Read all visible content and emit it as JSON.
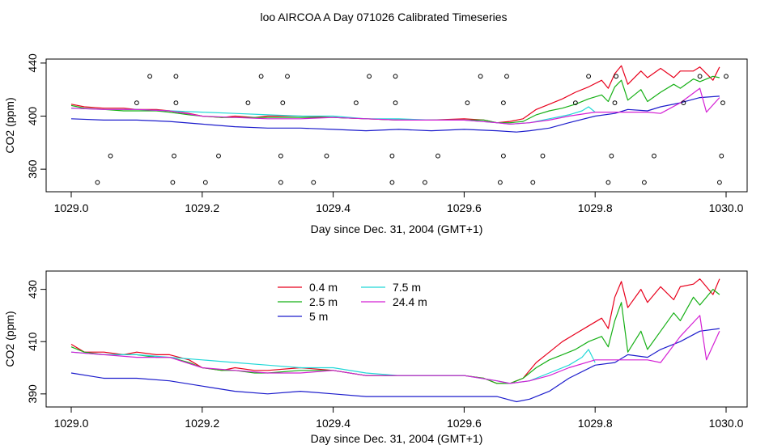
{
  "title": "loo AIRCOA A  Day 071026  Calibrated Timeseries",
  "colors": {
    "frame": "#000000"
  },
  "chart_data": [
    {
      "type": "line",
      "panel": "top",
      "xlabel": "Day since Dec. 31, 2004 (GMT+1)",
      "ylabel": "CO2 (ppm)",
      "xlim": [
        1029.0,
        1030.0
      ],
      "ylim": [
        343,
        443
      ],
      "xticks": [
        1029.0,
        1029.2,
        1029.4,
        1029.6,
        1029.8,
        1030.0
      ],
      "xtick_labels": [
        "1029.0",
        "1029.2",
        "1029.4",
        "1029.6",
        "1029.8",
        "1030.0"
      ],
      "yticks": [
        360,
        400,
        440
      ],
      "ytick_labels": [
        "360",
        "400",
        "440"
      ],
      "grid": false,
      "series": [
        {
          "name": "0.4 m",
          "color": "#e8001c",
          "x": [
            1029.0,
            1029.02,
            1029.05,
            1029.08,
            1029.1,
            1029.13,
            1029.15,
            1029.18,
            1029.2,
            1029.23,
            1029.25,
            1029.28,
            1029.3,
            1029.35,
            1029.4,
            1029.45,
            1029.5,
            1029.55,
            1029.6,
            1029.63,
            1029.65,
            1029.67,
            1029.69,
            1029.71,
            1029.73,
            1029.75,
            1029.77,
            1029.79,
            1029.81,
            1029.82,
            1029.83,
            1029.84,
            1029.85,
            1029.87,
            1029.88,
            1029.9,
            1029.92,
            1029.93,
            1029.95,
            1029.96,
            1029.98,
            1029.99
          ],
          "y": [
            409,
            407,
            406,
            406,
            405,
            405,
            404,
            402,
            400,
            399,
            400,
            399,
            400,
            400,
            399,
            398,
            397,
            397,
            398,
            397,
            395,
            396,
            398,
            405,
            409,
            413,
            418,
            422,
            427,
            421,
            432,
            438,
            424,
            434,
            429,
            436,
            429,
            434,
            434,
            437,
            427,
            437
          ]
        },
        {
          "name": "2.5 m",
          "color": "#16b016",
          "x": [
            1029.0,
            1029.02,
            1029.05,
            1029.08,
            1029.1,
            1029.13,
            1029.15,
            1029.18,
            1029.2,
            1029.23,
            1029.25,
            1029.28,
            1029.3,
            1029.35,
            1029.4,
            1029.45,
            1029.5,
            1029.55,
            1029.6,
            1029.63,
            1029.65,
            1029.67,
            1029.69,
            1029.71,
            1029.73,
            1029.75,
            1029.77,
            1029.79,
            1029.81,
            1029.82,
            1029.83,
            1029.84,
            1029.85,
            1029.87,
            1029.88,
            1029.9,
            1029.92,
            1029.93,
            1029.95,
            1029.96,
            1029.98,
            1029.99
          ],
          "y": [
            408,
            406,
            405,
            404,
            404,
            404,
            403,
            401,
            400,
            399,
            399,
            399,
            399,
            399,
            399,
            398,
            397,
            397,
            397,
            397,
            395,
            395,
            396,
            401,
            404,
            406,
            409,
            413,
            416,
            411,
            422,
            427,
            412,
            420,
            411,
            418,
            424,
            421,
            428,
            426,
            430,
            429
          ]
        },
        {
          "name": "5 m",
          "color": "#1c1ccc",
          "x": [
            1029.0,
            1029.05,
            1029.1,
            1029.15,
            1029.2,
            1029.25,
            1029.3,
            1029.35,
            1029.4,
            1029.45,
            1029.5,
            1029.55,
            1029.6,
            1029.65,
            1029.68,
            1029.7,
            1029.73,
            1029.76,
            1029.8,
            1029.83,
            1029.85,
            1029.88,
            1029.9,
            1029.93,
            1029.96,
            1029.99
          ],
          "y": [
            398,
            397,
            397,
            396,
            394,
            392,
            391,
            391,
            390,
            389,
            390,
            389,
            390,
            389,
            388,
            389,
            391,
            395,
            400,
            402,
            405,
            404,
            407,
            410,
            414,
            415
          ]
        },
        {
          "name": "7.5 m",
          "color": "#22d8d8",
          "x": [
            1029.0,
            1029.05,
            1029.1,
            1029.15,
            1029.2,
            1029.25,
            1029.3,
            1029.35,
            1029.4,
            1029.45,
            1029.5,
            1029.55,
            1029.6,
            1029.65,
            1029.67,
            1029.7,
            1029.73,
            1029.76,
            1029.78,
            1029.79,
            1029.8
          ],
          "y": [
            406,
            405,
            405,
            404,
            403,
            402,
            401,
            400,
            400,
            398,
            398,
            397,
            397,
            395,
            394,
            395,
            398,
            401,
            404,
            407,
            403
          ]
        },
        {
          "name": "24.4 m",
          "color": "#d420d4",
          "x": [
            1029.0,
            1029.05,
            1029.1,
            1029.15,
            1029.2,
            1029.25,
            1029.3,
            1029.35,
            1029.4,
            1029.45,
            1029.5,
            1029.55,
            1029.6,
            1029.65,
            1029.67,
            1029.7,
            1029.73,
            1029.76,
            1029.8,
            1029.83,
            1029.85,
            1029.88,
            1029.9,
            1029.93,
            1029.96,
            1029.97,
            1029.99
          ],
          "y": [
            406,
            405,
            405,
            404,
            400,
            399,
            398,
            398,
            399,
            398,
            397,
            397,
            397,
            395,
            394,
            395,
            397,
            400,
            403,
            403,
            403,
            403,
            402,
            410,
            421,
            403,
            414
          ]
        }
      ],
      "markers": {
        "symbol": "open-circle",
        "x": [
          1029.04,
          1029.06,
          1029.1,
          1029.12,
          1029.155,
          1029.157,
          1029.16,
          1029.16,
          1029.205,
          1029.225,
          1029.27,
          1029.29,
          1029.32,
          1029.32,
          1029.323,
          1029.33,
          1029.37,
          1029.39,
          1029.435,
          1029.455,
          1029.49,
          1029.49,
          1029.495,
          1029.495,
          1029.54,
          1029.56,
          1029.605,
          1029.625,
          1029.655,
          1029.66,
          1029.66,
          1029.665,
          1029.705,
          1029.72,
          1029.77,
          1029.79,
          1029.82,
          1029.825,
          1029.83,
          1029.832,
          1029.875,
          1029.89,
          1029.935,
          1029.96,
          1029.99,
          1029.993,
          1029.995,
          1030.0
        ],
        "y": [
          350,
          370,
          410,
          430,
          350,
          370,
          410,
          430,
          350,
          370,
          410,
          430,
          350,
          370,
          410,
          430,
          350,
          370,
          410,
          430,
          350,
          370,
          410,
          430,
          350,
          370,
          410,
          430,
          350,
          370,
          410,
          430,
          350,
          370,
          410,
          430,
          350,
          370,
          410,
          430,
          350,
          370,
          410,
          430,
          350,
          370,
          410,
          430
        ]
      }
    },
    {
      "type": "line",
      "panel": "bottom",
      "xlabel": "Day since Dec. 31, 2004 (GMT+1)",
      "ylabel": "CO2 (ppm)",
      "xlim": [
        1029.0,
        1030.0
      ],
      "ylim": [
        385,
        437
      ],
      "xticks": [
        1029.0,
        1029.2,
        1029.4,
        1029.6,
        1029.8,
        1030.0
      ],
      "xtick_labels": [
        "1029.0",
        "1029.2",
        "1029.4",
        "1029.6",
        "1029.8",
        "1030.0"
      ],
      "yticks": [
        390,
        410,
        430
      ],
      "ytick_labels": [
        "390",
        "410",
        "430"
      ],
      "grid": false,
      "legend": {
        "placement": "top-left",
        "entries": [
          "0.4 m",
          "2.5 m",
          "5 m",
          "7.5 m",
          "24.4 m"
        ]
      },
      "series": [
        {
          "name": "0.4 m",
          "color": "#e8001c",
          "x": [
            1029.0,
            1029.02,
            1029.05,
            1029.08,
            1029.1,
            1029.13,
            1029.15,
            1029.18,
            1029.2,
            1029.23,
            1029.25,
            1029.28,
            1029.3,
            1029.35,
            1029.4,
            1029.45,
            1029.5,
            1029.55,
            1029.6,
            1029.63,
            1029.65,
            1029.67,
            1029.69,
            1029.71,
            1029.73,
            1029.75,
            1029.77,
            1029.79,
            1029.81,
            1029.82,
            1029.83,
            1029.84,
            1029.85,
            1029.87,
            1029.88,
            1029.9,
            1029.92,
            1029.93,
            1029.95,
            1029.96,
            1029.98,
            1029.99
          ],
          "y": [
            409,
            406,
            406,
            405,
            406,
            405,
            405,
            403,
            400,
            399,
            400,
            399,
            399,
            400,
            399,
            397,
            397,
            397,
            397,
            396,
            394,
            394,
            396,
            402,
            406,
            410,
            413,
            416,
            419,
            415,
            427,
            433,
            423,
            430,
            425,
            431,
            426,
            431,
            432,
            434,
            428,
            434
          ]
        },
        {
          "name": "2.5 m",
          "color": "#16b016",
          "x": [
            1029.0,
            1029.02,
            1029.05,
            1029.08,
            1029.1,
            1029.13,
            1029.15,
            1029.18,
            1029.2,
            1029.23,
            1029.25,
            1029.28,
            1029.3,
            1029.35,
            1029.4,
            1029.45,
            1029.5,
            1029.55,
            1029.6,
            1029.63,
            1029.65,
            1029.67,
            1029.69,
            1029.71,
            1029.73,
            1029.75,
            1029.77,
            1029.79,
            1029.81,
            1029.82,
            1029.83,
            1029.84,
            1029.85,
            1029.87,
            1029.88,
            1029.9,
            1029.92,
            1029.93,
            1029.95,
            1029.96,
            1029.98,
            1029.99
          ],
          "y": [
            408,
            406,
            405,
            405,
            405,
            404,
            404,
            402,
            400,
            399,
            399,
            398,
            398,
            399,
            399,
            397,
            397,
            397,
            397,
            396,
            394,
            394,
            396,
            400,
            403,
            405,
            407,
            410,
            412,
            408,
            418,
            425,
            406,
            414,
            407,
            414,
            421,
            418,
            427,
            424,
            430,
            428
          ]
        },
        {
          "name": "5 m",
          "color": "#1c1ccc",
          "x": [
            1029.0,
            1029.05,
            1029.1,
            1029.15,
            1029.2,
            1029.25,
            1029.3,
            1029.35,
            1029.4,
            1029.45,
            1029.5,
            1029.55,
            1029.6,
            1029.65,
            1029.68,
            1029.7,
            1029.73,
            1029.76,
            1029.8,
            1029.83,
            1029.85,
            1029.88,
            1029.9,
            1029.93,
            1029.96,
            1029.99
          ],
          "y": [
            398,
            396,
            396,
            395,
            393,
            391,
            390,
            391,
            390,
            389,
            389,
            389,
            389,
            389,
            387,
            388,
            391,
            396,
            401,
            402,
            405,
            404,
            407,
            410,
            414,
            415
          ]
        },
        {
          "name": "7.5 m",
          "color": "#22d8d8",
          "x": [
            1029.0,
            1029.05,
            1029.1,
            1029.15,
            1029.2,
            1029.25,
            1029.3,
            1029.35,
            1029.4,
            1029.45,
            1029.5,
            1029.55,
            1029.6,
            1029.65,
            1029.67,
            1029.7,
            1029.73,
            1029.76,
            1029.78,
            1029.79,
            1029.8
          ],
          "y": [
            406,
            405,
            405,
            404,
            403,
            402,
            401,
            400,
            400,
            398,
            397,
            397,
            397,
            395,
            394,
            395,
            398,
            401,
            404,
            407,
            402
          ]
        },
        {
          "name": "24.4 m",
          "color": "#d420d4",
          "x": [
            1029.0,
            1029.05,
            1029.1,
            1029.15,
            1029.2,
            1029.25,
            1029.3,
            1029.35,
            1029.4,
            1029.45,
            1029.5,
            1029.55,
            1029.6,
            1029.65,
            1029.67,
            1029.7,
            1029.73,
            1029.76,
            1029.8,
            1029.83,
            1029.85,
            1029.88,
            1029.9,
            1029.93,
            1029.96,
            1029.97,
            1029.99
          ],
          "y": [
            406,
            405,
            404,
            404,
            400,
            399,
            398,
            398,
            399,
            397,
            397,
            397,
            397,
            395,
            394,
            395,
            397,
            400,
            403,
            403,
            403,
            403,
            402,
            412,
            420,
            403,
            414
          ]
        }
      ]
    }
  ]
}
